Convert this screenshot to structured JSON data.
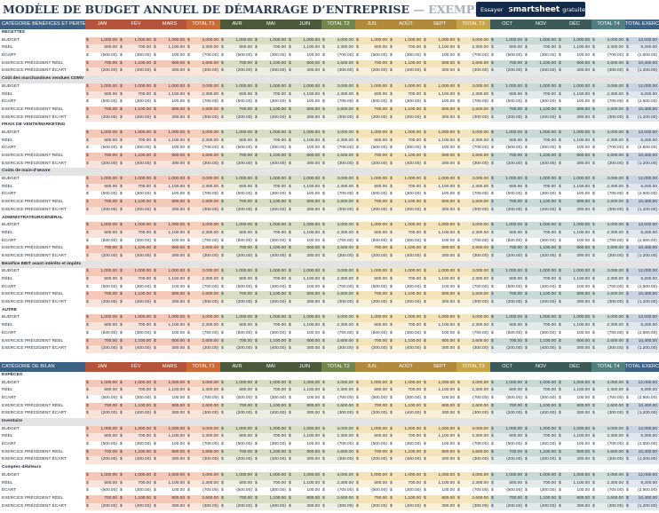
{
  "title": "MODÈLE DE BUDGET ANNUEL DE DÉMARRAGE D’ENTREPRISE",
  "title_suffix": "— EXEMPLE",
  "promo": {
    "pre": "Essayer",
    "brand": "smartsheet",
    "post": "gratuitement"
  },
  "tables": [
    {
      "header": [
        "CATÉGORIE BÉNÉFICES ET PERTES",
        "JAN",
        "FÉV",
        "MARS",
        "TOTAL T1",
        "AVR",
        "MAI",
        "JUIN",
        "TOTAL T2",
        "JUIL",
        "AOÛT",
        "SEPT",
        "TOTAL T3",
        "OCT",
        "NOV",
        "DÉC",
        "TOTAL T4",
        "TOTAL EXERCICE"
      ],
      "sections": [
        "RECETTES",
        "Coût des marchandises vendues CDMV",
        "FRAIS DE VENTE/MARKETING",
        "Coûts de main-d’œuvre",
        "ADMINISTRATEUR/GÉNÉRAL",
        "Bénéfice EBIT avant intérêts et impôts",
        "AUTRE"
      ]
    },
    {
      "header": [
        "CATÉGORIE DE BILAN",
        "JAN",
        "FÉV",
        "MARS",
        "TOTAL T1",
        "AVR",
        "MAI",
        "JUIN",
        "TOTAL T2",
        "JUIL",
        "AOÛT",
        "SEPT",
        "TOTAL T3",
        "OCT",
        "NOV",
        "DÉC",
        "TOTAL T4",
        "TOTAL EXERCICE"
      ],
      "sections": [
        "ESPÈCES",
        "Inventaire",
        "Comptes débiteurs"
      ]
    }
  ],
  "row_labels": [
    "BUDGET",
    "RÉEL",
    "ÉCART",
    "EXERCICE PRÉCÉDENT RÉEL",
    "EXERCICE PRÉCÉDENT ÉCART"
  ],
  "row_values": [
    [
      "1,000.00",
      "1,000.00",
      "1,000.00",
      "3,000.00",
      "1,000.00",
      "1,000.00",
      "1,000.00",
      "3,000.00",
      "1,000.00",
      "1,000.00",
      "1,000.00",
      "3,000.00",
      "1,000.00",
      "1,000.00",
      "1,000.00",
      "3,000.00",
      "12,000.00"
    ],
    [
      "500.00",
      "700.00",
      "1,100.00",
      "2,300.00",
      "500.00",
      "700.00",
      "1,100.00",
      "2,300.00",
      "500.00",
      "700.00",
      "1,100.00",
      "2,300.00",
      "500.00",
      "700.00",
      "1,100.00",
      "2,300.00",
      "9,200.00"
    ],
    [
      "(500.00)",
      "(300.00)",
      "100.00",
      "(700.00)",
      "(500.00)",
      "(300.00)",
      "100.00",
      "(700.00)",
      "(500.00)",
      "(300.00)",
      "100.00",
      "(700.00)",
      "(500.00)",
      "(300.00)",
      "100.00",
      "(700.00)",
      "(2,800.00)"
    ],
    [
      "700.00",
      "1,100.00",
      "800.00",
      "2,600.00",
      "700.00",
      "1,100.00",
      "800.00",
      "2,600.00",
      "700.00",
      "1,100.00",
      "800.00",
      "2,600.00",
      "700.00",
      "1,100.00",
      "800.00",
      "2,600.00",
      "10,400.00"
    ],
    [
      "(200.00)",
      "(400.00)",
      "300.00",
      "(300.00)",
      "(200.00)",
      "(400.00)",
      "300.00",
      "(300.00)",
      "(200.00)",
      "(400.00)",
      "300.00",
      "(300.00)",
      "(200.00)",
      "(400.00)",
      "300.00",
      "(300.00)",
      "(1,200.00)"
    ]
  ]
}
